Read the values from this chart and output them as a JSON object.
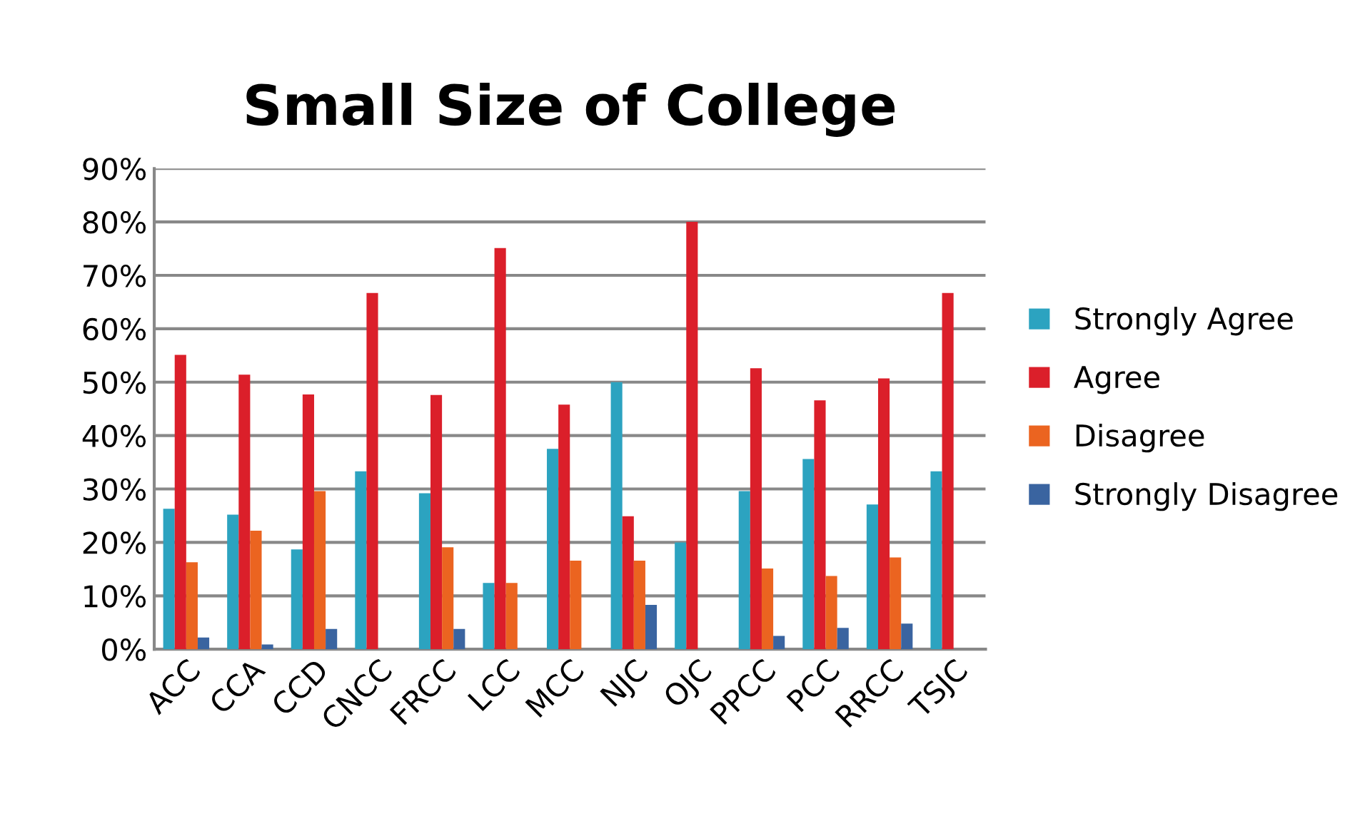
{
  "chart_data": {
    "type": "bar",
    "title": "Small Size of College",
    "categories": [
      "ACC",
      "CCA",
      "CCD",
      "CNCC",
      "FRCC",
      "LCC",
      "MCC",
      "NJC",
      "OJC",
      "PPCC",
      "PCC",
      "RRCC",
      "TSJC"
    ],
    "series": [
      {
        "name": "Strongly Agree",
        "color": "#2ca3c0",
        "values": [
          26.3,
          25.2,
          18.7,
          33.3,
          29.2,
          12.4,
          37.5,
          50,
          20,
          29.6,
          35.6,
          27.1,
          33.3
        ]
      },
      {
        "name": "Agree",
        "color": "#db1f2a",
        "values": [
          55.1,
          51.4,
          47.7,
          66.7,
          47.6,
          75.1,
          45.8,
          24.9,
          80,
          52.6,
          46.6,
          50.7,
          66.7
        ]
      },
      {
        "name": "Disagree",
        "color": "#eb6420",
        "values": [
          16.3,
          22.2,
          29.6,
          0,
          19.1,
          12.4,
          16.6,
          16.6,
          0,
          15.1,
          13.7,
          17.2,
          0
        ]
      },
      {
        "name": "Strongly Disagree",
        "color": "#3a64a0",
        "values": [
          2.2,
          0.9,
          3.8,
          0,
          3.8,
          0,
          0,
          8.3,
          0,
          2.5,
          4,
          4.8,
          0
        ]
      }
    ],
    "ylim": [
      0,
      90
    ],
    "yticks": [
      {
        "value": 0,
        "label": "0%"
      },
      {
        "value": 10,
        "label": "10%"
      },
      {
        "value": 20,
        "label": "20%"
      },
      {
        "value": 30,
        "label": "30%"
      },
      {
        "value": 40,
        "label": "40%"
      },
      {
        "value": 50,
        "label": "50%"
      },
      {
        "value": 60,
        "label": "60%"
      },
      {
        "value": 70,
        "label": "70%"
      },
      {
        "value": 80,
        "label": "80%"
      },
      {
        "value": 90,
        "label": "90%"
      }
    ],
    "grid": "y",
    "legend": "right"
  }
}
